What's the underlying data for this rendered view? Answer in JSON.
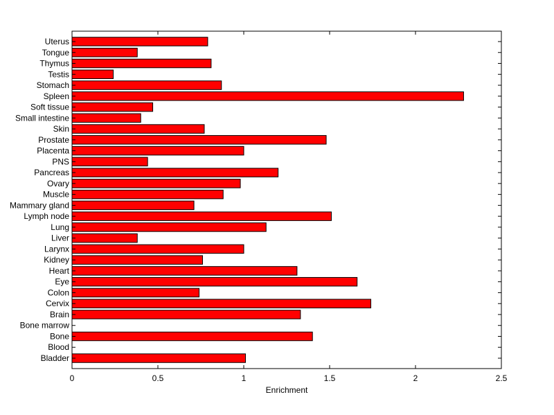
{
  "chart_data": {
    "type": "bar",
    "orientation": "horizontal",
    "title": "",
    "xlabel": "Enrichment",
    "ylabel": "",
    "xlim": [
      0,
      2.5
    ],
    "xticks": [
      "0",
      "0.5",
      "1",
      "1.5",
      "2",
      "2.5"
    ],
    "grid": false,
    "bar_color": "#ff0000",
    "categories": [
      "Bladder",
      "Blood",
      "Bone",
      "Bone marrow",
      "Brain",
      "Cervix",
      "Colon",
      "Eye",
      "Heart",
      "Kidney",
      "Larynx",
      "Liver",
      "Lung",
      "Lymph node",
      "Mammary gland",
      "Muscle",
      "Ovary",
      "Pancreas",
      "PNS",
      "Placenta",
      "Prostate",
      "Skin",
      "Small intestine",
      "Soft tissue",
      "Spleen",
      "Stomach",
      "Testis",
      "Thymus",
      "Tongue",
      "Uterus"
    ],
    "values": [
      1.01,
      0,
      1.4,
      0,
      1.33,
      1.74,
      0.74,
      1.66,
      1.31,
      0.76,
      1.0,
      0.38,
      1.13,
      1.51,
      0.71,
      0.88,
      0.98,
      1.2,
      0.44,
      1.0,
      1.48,
      0.77,
      0.4,
      0.47,
      2.28,
      0.87,
      0.24,
      0.81,
      0.38,
      0.79
    ]
  }
}
